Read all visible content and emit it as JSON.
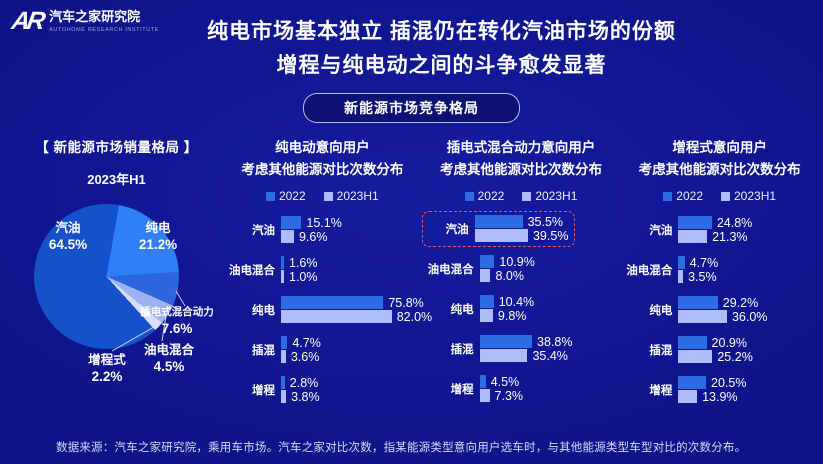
{
  "logo": {
    "mark": "AR",
    "name": "汽车之家研究院",
    "subtitle": "AUTOHOME RESEARCH INSTITUTE"
  },
  "title": {
    "line1": "纯电市场基本独立  插混仍在转化汽油市场的份额",
    "line2": "增程与纯电动之间的斗争愈发显著"
  },
  "badge": "新能源市场竞争格局",
  "pie_panel": {
    "title": "【 新能源市场销量格局 】"
  },
  "footer": "数据来源：汽车之家研究院，乘用车市场。汽车之家对比次数，指某能源类型意向用户选车时，与其他能源类型车型对比的次数分布。",
  "colors": {
    "background": "#0e1389",
    "bar_2022": "#2c6ce4",
    "bar_2023H1": "#aebcf7",
    "highlight_border": "#e05468"
  },
  "chart_data": [
    {
      "type": "pie",
      "title": "新能源市场销量格局",
      "period": "2023年H1",
      "start_angle_deg": 10,
      "direction": "clockwise-from-top",
      "slices": [
        {
          "label": "纯电",
          "value": 21.2,
          "color": "#2e80f4"
        },
        {
          "label": "插电式混合动力",
          "value": 7.6,
          "color": "#2d65dd"
        },
        {
          "label": "油电混合",
          "value": 4.5,
          "color": "#9db2f2"
        },
        {
          "label": "增程式",
          "value": 2.2,
          "color": "#d9def9"
        },
        {
          "label": "汽油",
          "value": 64.5,
          "color": "#1551cb"
        }
      ]
    },
    {
      "type": "bar",
      "orientation": "horizontal",
      "title_line1": "纯电动意向用户",
      "title_line2": "考虑其他能源对比次数分布",
      "unit": "%",
      "categories": [
        "汽油",
        "油电混合",
        "纯电",
        "插混",
        "增程"
      ],
      "series": [
        {
          "name": "2022",
          "values": [
            15.1,
            1.6,
            75.8,
            4.7,
            2.8
          ]
        },
        {
          "name": "2023H1",
          "values": [
            9.6,
            1.0,
            82.0,
            3.6,
            3.8
          ]
        }
      ]
    },
    {
      "type": "bar",
      "orientation": "horizontal",
      "title_line1": "插电式混合动力意向用户",
      "title_line2": "考虑其他能源对比次数分布",
      "unit": "%",
      "highlight_category": "汽油",
      "categories": [
        "汽油",
        "油电混合",
        "纯电",
        "插混",
        "增程"
      ],
      "series": [
        {
          "name": "2022",
          "values": [
            35.5,
            10.9,
            10.4,
            38.8,
            4.5
          ]
        },
        {
          "name": "2023H1",
          "values": [
            39.5,
            8.0,
            9.8,
            35.4,
            7.3
          ]
        }
      ]
    },
    {
      "type": "bar",
      "orientation": "horizontal",
      "title_line1": "增程式意向用户",
      "title_line2": "考虑其他能源对比次数分布",
      "unit": "%",
      "categories": [
        "汽油",
        "油电混合",
        "纯电",
        "插混",
        "增程"
      ],
      "series": [
        {
          "name": "2022",
          "values": [
            24.8,
            4.7,
            29.2,
            20.9,
            20.5
          ]
        },
        {
          "name": "2023H1",
          "values": [
            21.3,
            3.5,
            36.0,
            25.2,
            13.9
          ]
        }
      ]
    }
  ]
}
